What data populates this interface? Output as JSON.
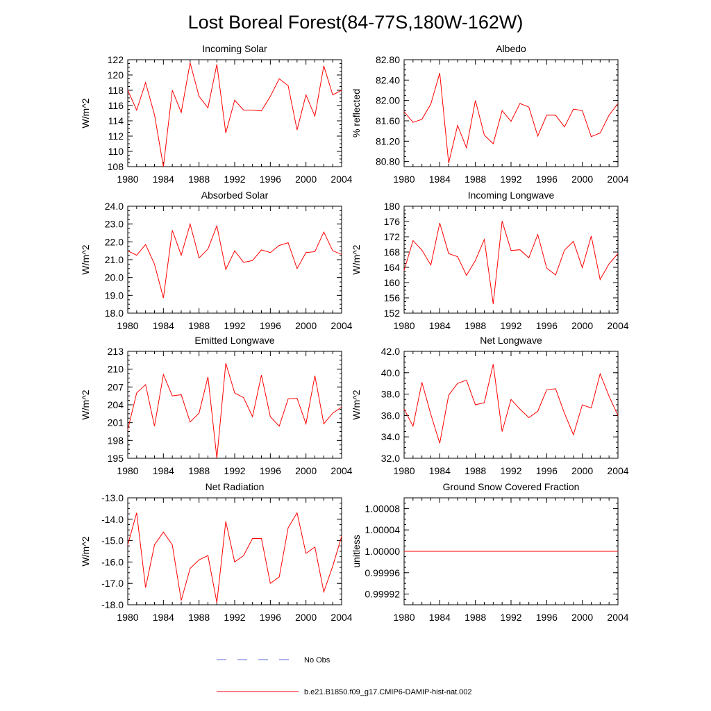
{
  "figure_title": "Lost Boreal Forest(84-77S,180W-162W)",
  "legend": {
    "entries": [
      {
        "label": "No Obs",
        "style": "dashed",
        "color": "#5a6ad8"
      },
      {
        "label": "b.e21.B1850.f09_g17.CMIP6-DAMIP-hist-nat.002",
        "style": "solid",
        "color": "#e8000b"
      }
    ]
  },
  "chart_data": [
    {
      "type": "line",
      "title": "Incoming Solar",
      "xlabel": "",
      "ylabel": "W/m^2",
      "xlim": [
        1980,
        2004
      ],
      "ylim": [
        108,
        122
      ],
      "xticks": [
        1980,
        1984,
        1988,
        1992,
        1996,
        2000,
        2004
      ],
      "yticks": [
        108,
        110,
        112,
        114,
        116,
        118,
        120,
        122
      ],
      "ytick_labels": [
        "108",
        "110",
        "112",
        "114",
        "116",
        "118",
        "120",
        "122"
      ],
      "series": [
        {
          "color": "#ff0000",
          "x": [
            1980,
            1981,
            1982,
            1983,
            1984,
            1985,
            1986,
            1987,
            1988,
            1989,
            1990,
            1991,
            1992,
            1993,
            1994,
            1995,
            1996,
            1997,
            1998,
            1999,
            2000,
            2001,
            2002,
            2003,
            2004
          ],
          "y": [
            118.0,
            115.4,
            119.0,
            114.8,
            108.0,
            118.0,
            115.1,
            121.6,
            117.2,
            115.7,
            121.4,
            112.4,
            116.7,
            115.4,
            115.4,
            115.3,
            117.2,
            119.5,
            118.6,
            112.8,
            117.4,
            114.6,
            121.2,
            117.4,
            118.0
          ]
        }
      ]
    },
    {
      "type": "line",
      "title": "Albedo",
      "xlabel": "",
      "ylabel": "% reflected",
      "xlim": [
        1980,
        2004
      ],
      "ylim": [
        80.7,
        82.8
      ],
      "xticks": [
        1980,
        1984,
        1988,
        1992,
        1996,
        2000,
        2004
      ],
      "yticks": [
        80.8,
        81.2,
        81.6,
        82.0,
        82.4,
        82.8
      ],
      "ytick_labels": [
        "80.80",
        "81.20",
        "81.60",
        "82.00",
        "82.40",
        "82.80"
      ],
      "series": [
        {
          "color": "#ff0000",
          "x": [
            1980,
            1981,
            1982,
            1983,
            1984,
            1985,
            1986,
            1987,
            1988,
            1989,
            1990,
            1991,
            1992,
            1993,
            1994,
            1995,
            1996,
            1997,
            1998,
            1999,
            2000,
            2001,
            2002,
            2003,
            2004
          ],
          "y": [
            81.78,
            81.57,
            81.63,
            81.93,
            82.54,
            80.77,
            81.51,
            81.07,
            82.0,
            81.32,
            81.15,
            81.8,
            81.59,
            81.94,
            81.87,
            81.3,
            81.71,
            81.71,
            81.48,
            81.83,
            81.8,
            81.29,
            81.36,
            81.71,
            81.94
          ]
        }
      ]
    },
    {
      "type": "line",
      "title": "Absorbed Solar",
      "xlabel": "",
      "ylabel": "W/m^2",
      "xlim": [
        1980,
        2004
      ],
      "ylim": [
        18.0,
        24.0
      ],
      "xticks": [
        1980,
        1984,
        1988,
        1992,
        1996,
        2000,
        2004
      ],
      "yticks": [
        18,
        19,
        20,
        21,
        22,
        23,
        24
      ],
      "ytick_labels": [
        "18.0",
        "19.0",
        "20.0",
        "21.0",
        "22.0",
        "23.0",
        "24.0"
      ],
      "series": [
        {
          "color": "#ff0000",
          "x": [
            1980,
            1981,
            1982,
            1983,
            1984,
            1985,
            1986,
            1987,
            1988,
            1989,
            1990,
            1991,
            1992,
            1993,
            1994,
            1995,
            1996,
            1997,
            1998,
            1999,
            2000,
            2001,
            2002,
            2003,
            2004
          ],
          "y": [
            21.5,
            21.25,
            21.85,
            20.75,
            18.85,
            22.65,
            21.25,
            23.0,
            21.1,
            21.6,
            22.9,
            20.45,
            21.5,
            20.85,
            20.95,
            21.55,
            21.4,
            21.8,
            21.95,
            20.5,
            21.4,
            21.45,
            22.55,
            21.5,
            21.3
          ]
        }
      ]
    },
    {
      "type": "line",
      "title": "Incoming Longwave",
      "xlabel": "",
      "ylabel": "W/m^2",
      "xlim": [
        1980,
        2004
      ],
      "ylim": [
        152,
        180
      ],
      "xticks": [
        1980,
        1984,
        1988,
        1992,
        1996,
        2000,
        2004
      ],
      "yticks": [
        152,
        156,
        160,
        164,
        168,
        172,
        176,
        180
      ],
      "ytick_labels": [
        "152",
        "156",
        "160",
        "164",
        "168",
        "172",
        "176",
        "180"
      ],
      "series": [
        {
          "color": "#ff0000",
          "x": [
            1980,
            1981,
            1982,
            1983,
            1984,
            1985,
            1986,
            1987,
            1988,
            1989,
            1990,
            1991,
            1992,
            1993,
            1994,
            1995,
            1996,
            1997,
            1998,
            1999,
            2000,
            2001,
            2002,
            2003,
            2004
          ],
          "y": [
            163.2,
            171.0,
            168.5,
            164.6,
            175.6,
            167.6,
            166.8,
            161.9,
            165.8,
            171.3,
            154.4,
            176.1,
            168.4,
            168.6,
            166.5,
            172.6,
            163.8,
            162.0,
            168.5,
            170.8,
            163.9,
            172.2,
            160.8,
            164.9,
            167.6
          ]
        }
      ]
    },
    {
      "type": "line",
      "title": "Emitted Longwave",
      "xlabel": "",
      "ylabel": "W/m^2",
      "xlim": [
        1980,
        2004
      ],
      "ylim": [
        195,
        213
      ],
      "xticks": [
        1980,
        1984,
        1988,
        1992,
        1996,
        2000,
        2004
      ],
      "yticks": [
        195,
        198,
        201,
        204,
        207,
        210,
        213
      ],
      "ytick_labels": [
        "195",
        "198",
        "201",
        "204",
        "207",
        "210",
        "213"
      ],
      "series": [
        {
          "color": "#ff0000",
          "x": [
            1980,
            1981,
            1982,
            1983,
            1984,
            1985,
            1986,
            1987,
            1988,
            1989,
            1990,
            1991,
            1992,
            1993,
            1994,
            1995,
            1996,
            1997,
            1998,
            1999,
            2000,
            2001,
            2002,
            2003,
            2004
          ],
          "y": [
            199.8,
            206.0,
            207.4,
            200.4,
            209.1,
            205.5,
            205.7,
            201.1,
            202.6,
            208.7,
            195.0,
            211.0,
            206.0,
            205.2,
            202.0,
            209.0,
            202.0,
            200.4,
            205.0,
            205.1,
            200.8,
            208.9,
            200.8,
            202.6,
            203.6
          ]
        }
      ]
    },
    {
      "type": "line",
      "title": "Net Longwave",
      "xlabel": "",
      "ylabel": "W/m^2",
      "xlim": [
        1980,
        2004
      ],
      "ylim": [
        32.0,
        42.0
      ],
      "xticks": [
        1980,
        1984,
        1988,
        1992,
        1996,
        2000,
        2004
      ],
      "yticks": [
        32,
        34,
        36,
        38,
        40,
        42
      ],
      "ytick_labels": [
        "32.0",
        "34.0",
        "36.0",
        "38.0",
        "40.0",
        "42.0"
      ],
      "series": [
        {
          "color": "#ff0000",
          "x": [
            1980,
            1981,
            1982,
            1983,
            1984,
            1985,
            1986,
            1987,
            1988,
            1989,
            1990,
            1991,
            1992,
            1993,
            1994,
            1995,
            1996,
            1997,
            1998,
            1999,
            2000,
            2001,
            2002,
            2003,
            2004
          ],
          "y": [
            36.6,
            35.0,
            39.1,
            36.1,
            33.4,
            37.9,
            39.0,
            39.3,
            37.0,
            37.2,
            40.8,
            34.5,
            37.5,
            36.6,
            35.8,
            36.4,
            38.4,
            38.5,
            36.2,
            34.2,
            37.0,
            36.7,
            39.9,
            37.8,
            36.0
          ]
        }
      ]
    },
    {
      "type": "line",
      "title": "Net Radiation",
      "xlabel": "",
      "ylabel": "W/m^2",
      "xlim": [
        1980,
        2004
      ],
      "ylim": [
        -18.0,
        -13.0
      ],
      "xticks": [
        1980,
        1984,
        1988,
        1992,
        1996,
        2000,
        2004
      ],
      "yticks": [
        -18,
        -17,
        -16,
        -15,
        -14,
        -13
      ],
      "ytick_labels": [
        "-18.0",
        "-17.0",
        "-16.0",
        "-15.0",
        "-14.0",
        "-13.0"
      ],
      "series": [
        {
          "color": "#ff0000",
          "x": [
            1980,
            1981,
            1982,
            1983,
            1984,
            1985,
            1986,
            1987,
            1988,
            1989,
            1990,
            1991,
            1992,
            1993,
            1994,
            1995,
            1996,
            1997,
            1998,
            1999,
            2000,
            2001,
            2002,
            2003,
            2004
          ],
          "y": [
            -15.2,
            -13.7,
            -17.2,
            -15.2,
            -14.6,
            -15.2,
            -17.8,
            -16.3,
            -15.9,
            -15.7,
            -17.9,
            -14.1,
            -16.0,
            -15.7,
            -14.9,
            -14.9,
            -17.0,
            -16.7,
            -14.4,
            -13.7,
            -15.6,
            -15.3,
            -17.4,
            -16.2,
            -14.8
          ]
        }
      ]
    },
    {
      "type": "line",
      "title": "Ground Snow Covered Fraction",
      "xlabel": "",
      "ylabel": "unitless",
      "xlim": [
        1980,
        2004
      ],
      "ylim": [
        0.9999,
        1.0001
      ],
      "xticks": [
        1980,
        1984,
        1988,
        1992,
        1996,
        2000,
        2004
      ],
      "yticks": [
        0.99992,
        0.99996,
        1.0,
        1.00004,
        1.00008
      ],
      "ytick_labels": [
        "0.99992",
        "0.99996",
        "1.00000",
        "1.00004",
        "1.00008"
      ],
      "series": [
        {
          "color": "#ff0000",
          "x": [
            1980,
            2004
          ],
          "y": [
            1.0,
            1.0
          ]
        }
      ]
    }
  ]
}
